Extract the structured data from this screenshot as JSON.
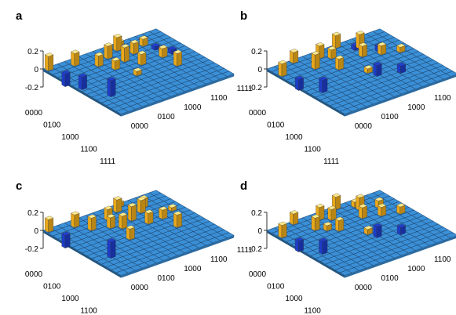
{
  "chart_data": [
    {
      "type": "bar3d",
      "label": "a",
      "zticks": [
        "0.2",
        "0",
        "-0.2"
      ],
      "row_ticks": [
        "0000",
        "0100",
        "1000",
        "1100",
        "1111"
      ],
      "col_ticks": [
        "0000",
        "0100",
        "1000",
        "1100",
        "1111"
      ],
      "zlim": [
        -0.2,
        0.2
      ],
      "grid_size": 16,
      "colors": {
        "floor": "#3a8fd6",
        "edge": "#1b3f66",
        "positive": "#f6b21c",
        "negative": "#1f3fd1"
      },
      "bars": [
        {
          "r": 0,
          "c": 0,
          "v": 0.16
        },
        {
          "r": 2,
          "c": 1,
          "v": -0.14
        },
        {
          "r": 4,
          "c": 2,
          "v": -0.14
        },
        {
          "r": 7,
          "c": 4,
          "v": -0.18
        },
        {
          "r": 1,
          "c": 3,
          "v": 0.14
        },
        {
          "r": 3,
          "c": 5,
          "v": 0.12
        },
        {
          "r": 5,
          "c": 6,
          "v": 0.1
        },
        {
          "r": 2,
          "c": 7,
          "v": 0.14
        },
        {
          "r": 4,
          "c": 8,
          "v": 0.16
        },
        {
          "r": 6,
          "c": 9,
          "v": 0.12
        },
        {
          "r": 1,
          "c": 9,
          "v": 0.15
        },
        {
          "r": 3,
          "c": 10,
          "v": 0.12
        },
        {
          "r": 6,
          "c": 12,
          "v": 0.1
        },
        {
          "r": 9,
          "c": 12,
          "v": 0.14
        },
        {
          "r": 2,
          "c": 12,
          "v": 0.08
        },
        {
          "r": 0,
          "c": 10,
          "v": 0.04
        },
        {
          "r": 5,
          "c": 14,
          "v": -0.05
        },
        {
          "r": 8,
          "c": 7,
          "v": 0.05
        },
        {
          "r": 3,
          "c": 13,
          "v": -0.04
        }
      ]
    },
    {
      "type": "bar3d",
      "label": "b",
      "zticks": [
        "0.2",
        "0",
        "-0.2"
      ],
      "row_ticks": [
        "0000",
        "0100",
        "1000",
        "1100",
        "1111"
      ],
      "col_ticks": [
        "0000",
        "0100",
        "1000",
        "1100",
        "1111"
      ],
      "zlim": [
        -0.2,
        0.2
      ],
      "grid_size": 16,
      "colors": {
        "floor": "#3a8fd6",
        "edge": "#1b3f66",
        "positive": "#f6b21c",
        "negative": "#1f3fd1"
      },
      "bars": [
        {
          "r": 2,
          "c": 0,
          "v": 0.14
        },
        {
          "r": 4,
          "c": 1,
          "v": -0.12
        },
        {
          "r": 0,
          "c": 3,
          "v": 0.12
        },
        {
          "r": 6,
          "c": 3,
          "v": -0.14
        },
        {
          "r": 3,
          "c": 4,
          "v": 0.16
        },
        {
          "r": 1,
          "c": 6,
          "v": 0.14
        },
        {
          "r": 5,
          "c": 6,
          "v": 0.12
        },
        {
          "r": 2,
          "c": 7,
          "v": 0.1
        },
        {
          "r": 0,
          "c": 9,
          "v": 0.14
        },
        {
          "r": 4,
          "c": 10,
          "v": 0.12
        },
        {
          "r": 7,
          "c": 10,
          "v": -0.12
        },
        {
          "r": 2,
          "c": 11,
          "v": 0.16
        },
        {
          "r": 5,
          "c": 12,
          "v": 0.1
        },
        {
          "r": 9,
          "c": 12,
          "v": -0.08
        },
        {
          "r": 3,
          "c": 13,
          "v": -0.06
        },
        {
          "r": 1,
          "c": 11,
          "v": -0.05
        },
        {
          "r": 6,
          "c": 14,
          "v": 0.06
        },
        {
          "r": 8,
          "c": 8,
          "v": 0.05
        }
      ]
    },
    {
      "type": "bar3d",
      "label": "c",
      "zticks": [
        "0.2",
        "0",
        "-0.2"
      ],
      "row_ticks": [
        "0000",
        "0100",
        "1000",
        "1100",
        "1111"
      ],
      "col_ticks": [
        "0000",
        "0100",
        "1000",
        "1100",
        "1111"
      ],
      "zlim": [
        -0.2,
        0.2
      ],
      "grid_size": 16,
      "colors": {
        "floor": "#3a8fd6",
        "edge": "#1b3f66",
        "positive": "#f6b21c",
        "negative": "#1f3fd1"
      },
      "bars": [
        {
          "r": 0,
          "c": 0,
          "v": 0.14
        },
        {
          "r": 2,
          "c": 1,
          "v": -0.14
        },
        {
          "r": 7,
          "c": 4,
          "v": -0.18
        },
        {
          "r": 1,
          "c": 3,
          "v": 0.14
        },
        {
          "r": 3,
          "c": 4,
          "v": 0.14
        },
        {
          "r": 4,
          "c": 6,
          "v": 0.12
        },
        {
          "r": 2,
          "c": 7,
          "v": 0.12
        },
        {
          "r": 5,
          "c": 7,
          "v": 0.14
        },
        {
          "r": 4,
          "c": 9,
          "v": 0.16
        },
        {
          "r": 1,
          "c": 9,
          "v": 0.14
        },
        {
          "r": 6,
          "c": 10,
          "v": 0.12
        },
        {
          "r": 3,
          "c": 11,
          "v": 0.14
        },
        {
          "r": 6,
          "c": 12,
          "v": 0.1
        },
        {
          "r": 9,
          "c": 12,
          "v": 0.14
        },
        {
          "r": 2,
          "c": 12,
          "v": 0.1
        },
        {
          "r": 8,
          "c": 6,
          "v": 0.12
        },
        {
          "r": 5,
          "c": 14,
          "v": 0.04
        },
        {
          "r": 0,
          "c": 10,
          "v": 0.05
        }
      ]
    },
    {
      "type": "bar3d",
      "label": "d",
      "zticks": [
        "0.2",
        "0",
        "-0.2"
      ],
      "row_ticks": [
        "0000",
        "0100",
        "1000",
        "1100",
        "1111"
      ],
      "col_ticks": [
        "0000",
        "0100",
        "1000",
        "1100",
        "1111"
      ],
      "zlim": [
        -0.2,
        0.2
      ],
      "grid_size": 16,
      "colors": {
        "floor": "#3a8fd6",
        "edge": "#1b3f66",
        "positive": "#f6b21c",
        "negative": "#1f3fd1"
      },
      "bars": [
        {
          "r": 2,
          "c": 0,
          "v": 0.14
        },
        {
          "r": 4,
          "c": 1,
          "v": -0.12
        },
        {
          "r": 0,
          "c": 3,
          "v": 0.12
        },
        {
          "r": 6,
          "c": 3,
          "v": -0.14
        },
        {
          "r": 3,
          "c": 4,
          "v": 0.14
        },
        {
          "r": 1,
          "c": 6,
          "v": 0.14
        },
        {
          "r": 5,
          "c": 6,
          "v": 0.12
        },
        {
          "r": 2,
          "c": 7,
          "v": 0.12
        },
        {
          "r": 0,
          "c": 9,
          "v": 0.14
        },
        {
          "r": 4,
          "c": 10,
          "v": 0.12
        },
        {
          "r": 7,
          "c": 10,
          "v": -0.12
        },
        {
          "r": 2,
          "c": 11,
          "v": 0.14
        },
        {
          "r": 5,
          "c": 12,
          "v": 0.1
        },
        {
          "r": 9,
          "c": 12,
          "v": -0.08
        },
        {
          "r": 3,
          "c": 13,
          "v": 0.08
        },
        {
          "r": 1,
          "c": 11,
          "v": 0.06
        },
        {
          "r": 6,
          "c": 14,
          "v": 0.08
        },
        {
          "r": 8,
          "c": 8,
          "v": 0.06
        },
        {
          "r": 4,
          "c": 5,
          "v": 0.06
        }
      ]
    }
  ]
}
